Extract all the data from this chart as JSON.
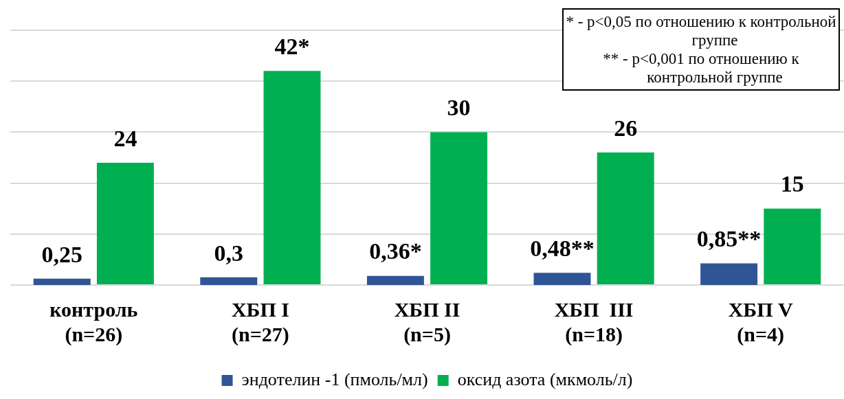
{
  "chart_data": {
    "type": "bar",
    "categories": [
      "контроль\n(n=26)",
      "ХБП I\n(n=27)",
      "ХБП II\n(n=5)",
      "ХБП  III\n(n=18)",
      "ХБП V\n(n=4)"
    ],
    "series": [
      {
        "name": "эндотелин -1 (пмоль/мл)",
        "color": "#2f5597",
        "axis": "y2",
        "values": [
          0.25,
          0.3,
          0.36,
          0.48,
          0.85
        ],
        "value_labels": [
          "0,25",
          "0,3",
          "0,36*",
          "0,48**",
          "0,85**"
        ]
      },
      {
        "name": "оксид азота (мкмоль/л)",
        "color": "#00b050",
        "values": [
          24,
          42,
          30,
          26,
          15
        ],
        "value_labels": [
          "24",
          "42*",
          "30",
          "26",
          "15"
        ]
      }
    ],
    "ylim": [
      0,
      50
    ],
    "yticks": [
      {
        "value": 0,
        "label": null
      },
      {
        "value": 10,
        "label": null
      },
      {
        "value": 20,
        "label": null
      },
      {
        "value": 30,
        "label": null
      },
      {
        "value": 40,
        "label": null
      },
      {
        "value": 50,
        "label": null
      }
    ],
    "y2lim": [
      0,
      10
    ],
    "grid": "y",
    "legend": "bottom",
    "tick_labels": "x",
    "annotations": [
      "* - p<0,05 по отношению к контрольной группе",
      "** - p<0,001 по отношению к контрольной группе"
    ]
  }
}
